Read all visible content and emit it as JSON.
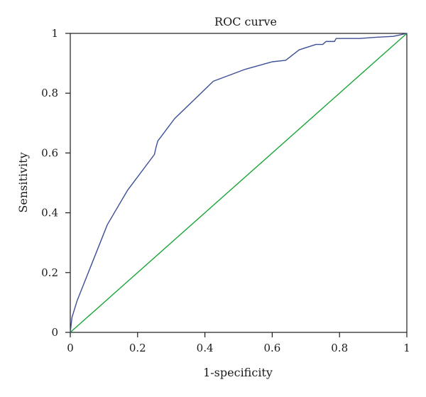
{
  "chart_data": {
    "type": "line",
    "title": "ROC curve",
    "xlabel": "1-specificity",
    "ylabel": "Sensitivity",
    "xlim": [
      0,
      1
    ],
    "ylim": [
      0,
      1
    ],
    "x_ticks": [
      0,
      0.2,
      0.4,
      0.6,
      0.8,
      1
    ],
    "x_tick_labels": [
      "0",
      "0.2",
      "0.4",
      "0.6",
      "0.8",
      "1"
    ],
    "y_ticks": [
      0,
      0.2,
      0.4,
      0.6,
      0.8,
      1
    ],
    "y_tick_labels": [
      "0",
      "0.2",
      "0.4",
      "0.6",
      "0.8",
      "1"
    ],
    "grid": false,
    "legend": "none",
    "series": [
      {
        "color": "#3b4f96",
        "x": [
          0,
          0.005,
          0.02,
          0.11,
          0.17,
          0.25,
          0.255,
          0.26,
          0.31,
          0.37,
          0.425,
          0.52,
          0.6,
          0.64,
          0.68,
          0.73,
          0.75,
          0.76,
          0.765,
          0.77,
          0.785,
          0.79,
          0.86,
          0.91,
          0.96,
          1
        ],
        "y": [
          0,
          0.05,
          0.105,
          0.36,
          0.475,
          0.595,
          0.62,
          0.64,
          0.715,
          0.78,
          0.84,
          0.88,
          0.905,
          0.91,
          0.945,
          0.963,
          0.963,
          0.973,
          0.973,
          0.973,
          0.973,
          0.983,
          0.983,
          0.987,
          0.99,
          1
        ]
      },
      {
        "color": "#1aa539",
        "x": [
          0,
          1
        ],
        "y": [
          0,
          1
        ]
      }
    ]
  }
}
